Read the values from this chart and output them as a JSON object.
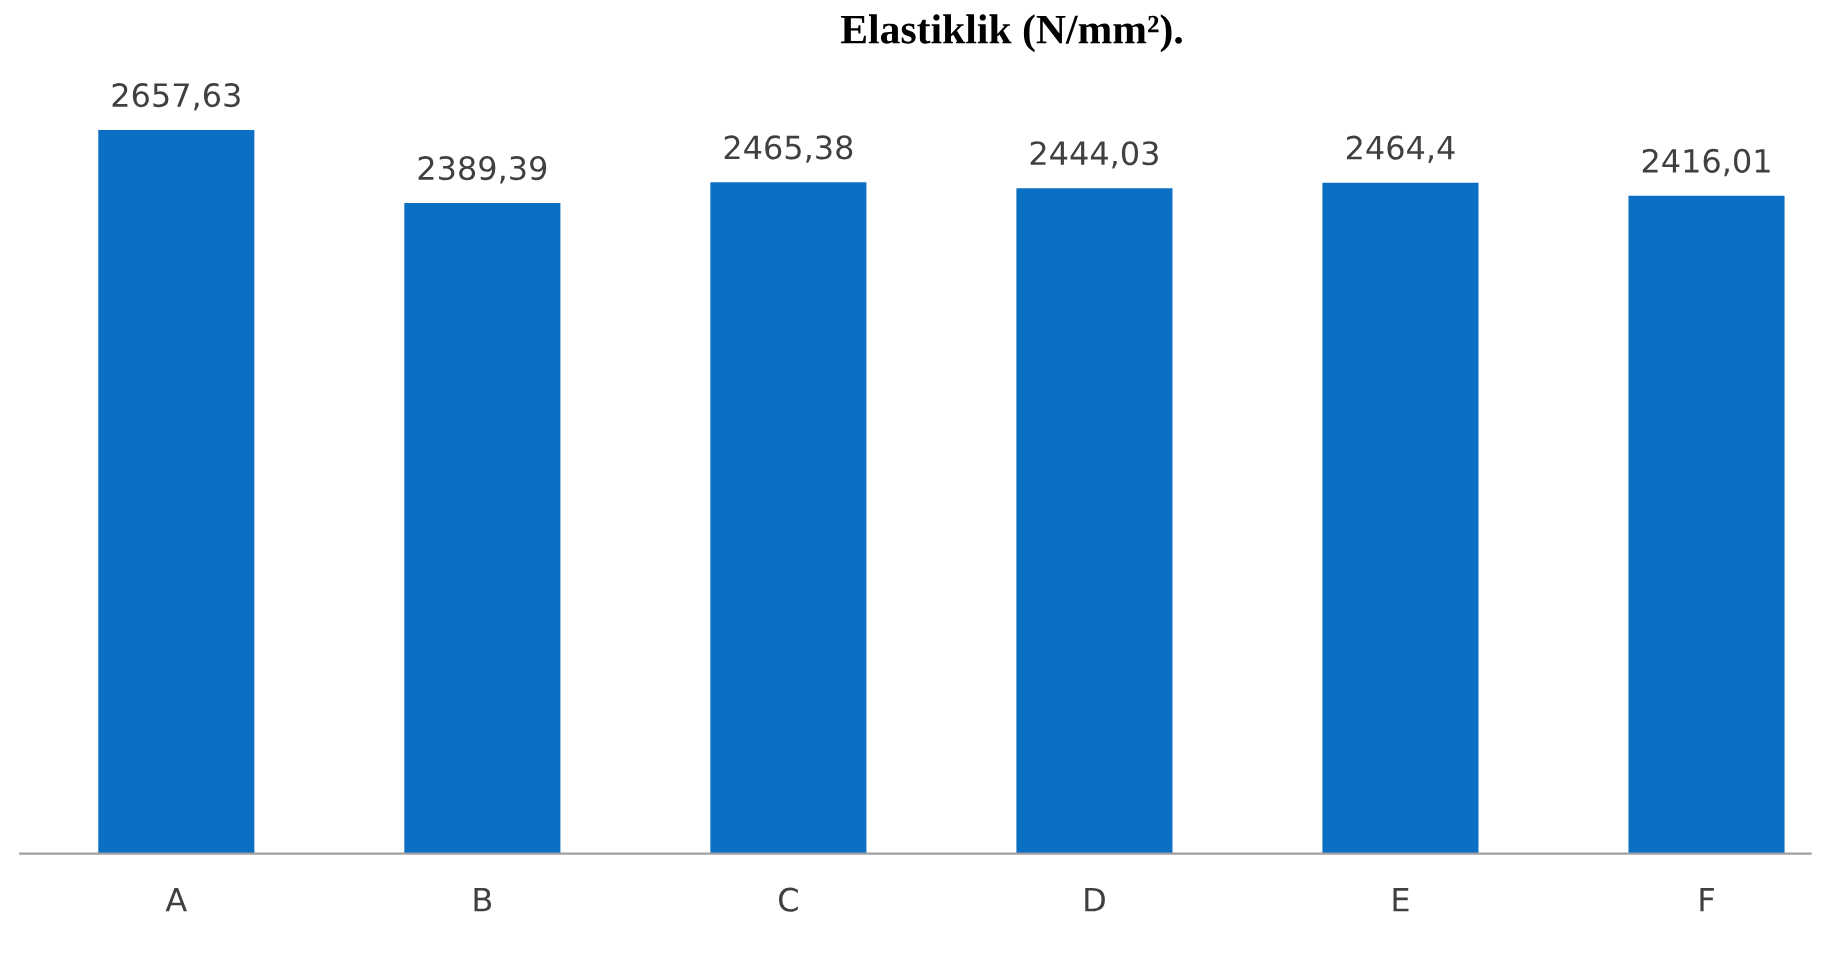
{
  "chart_data": {
    "type": "bar",
    "title": "Elastiklik (N/mm²).",
    "categories": [
      "A",
      "B",
      "C",
      "D",
      "E",
      "F"
    ],
    "values": [
      2657.63,
      2389.39,
      2465.38,
      2444.03,
      2464.4,
      2416.01
    ],
    "value_labels": [
      "2657,63",
      "2389,39",
      "2465,38",
      "2444,03",
      "2464,4",
      "2416,01"
    ],
    "color": "#0b6fc4",
    "tick_labels": "x",
    "grid": false,
    "legend": false
  }
}
